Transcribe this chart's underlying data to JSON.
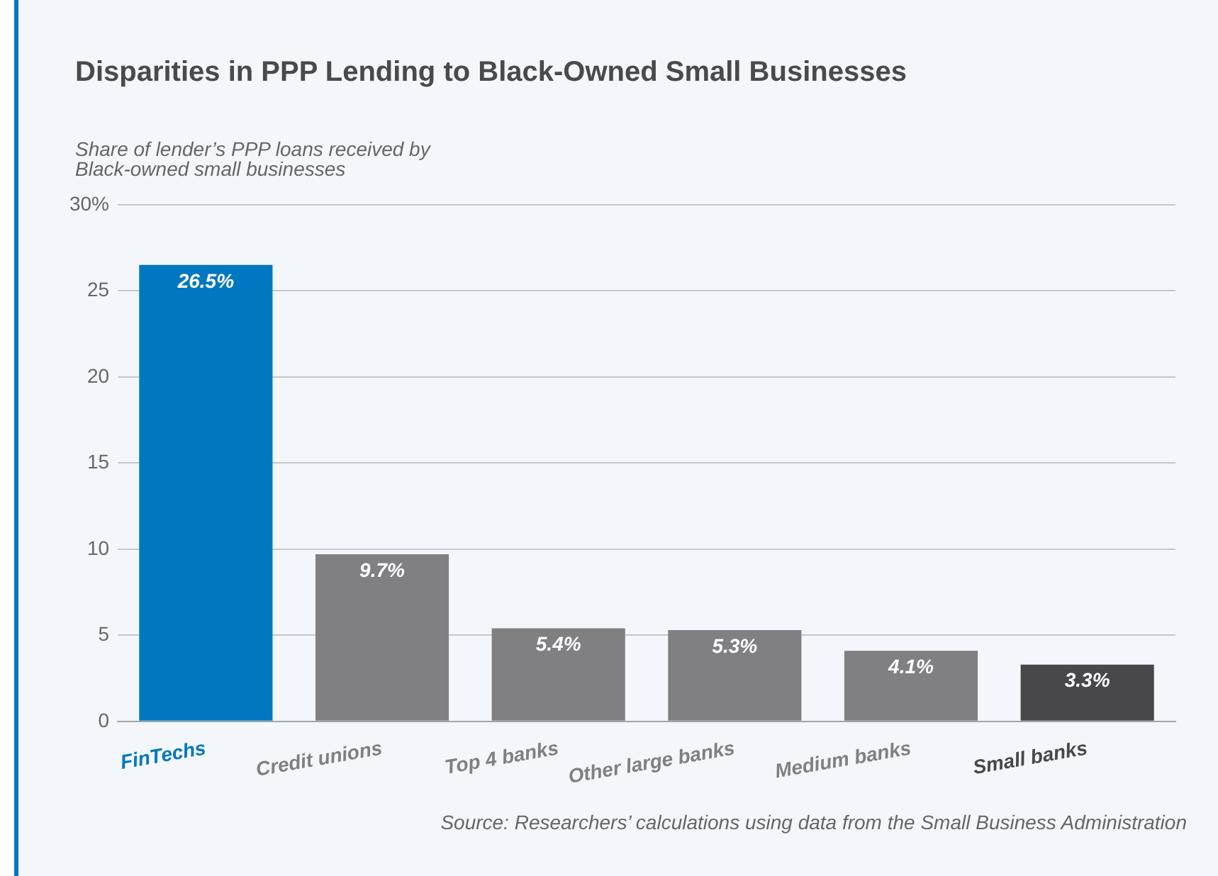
{
  "chart_data": {
    "type": "bar",
    "title": "Disparities in PPP Lending to Black-Owned Small Businesses",
    "ylabel": "Share of lender’s PPP loans received by Black-owned small businesses",
    "categories": [
      "FinTechs",
      "Credit unions",
      "Top 4 banks",
      "Other large banks",
      "Medium banks",
      "Small banks"
    ],
    "values": [
      26.5,
      9.7,
      5.4,
      5.3,
      4.1,
      3.3
    ],
    "colors": [
      "#0077c0",
      "#808083",
      "#808083",
      "#808083",
      "#808083",
      "#48484b"
    ],
    "value_labels": [
      "26.5%",
      "9.7%",
      "5.4%",
      "5.3%",
      "4.1%",
      "3.3%"
    ],
    "ylim": [
      0,
      30
    ],
    "yticks": [
      0,
      5,
      10,
      15,
      20,
      25,
      {
        "value": 30,
        "label": "30%"
      }
    ],
    "grid": "y",
    "legend": false,
    "annotations": [
      "Source: Researchers’ calculations using data from the Small Business Administration"
    ]
  }
}
